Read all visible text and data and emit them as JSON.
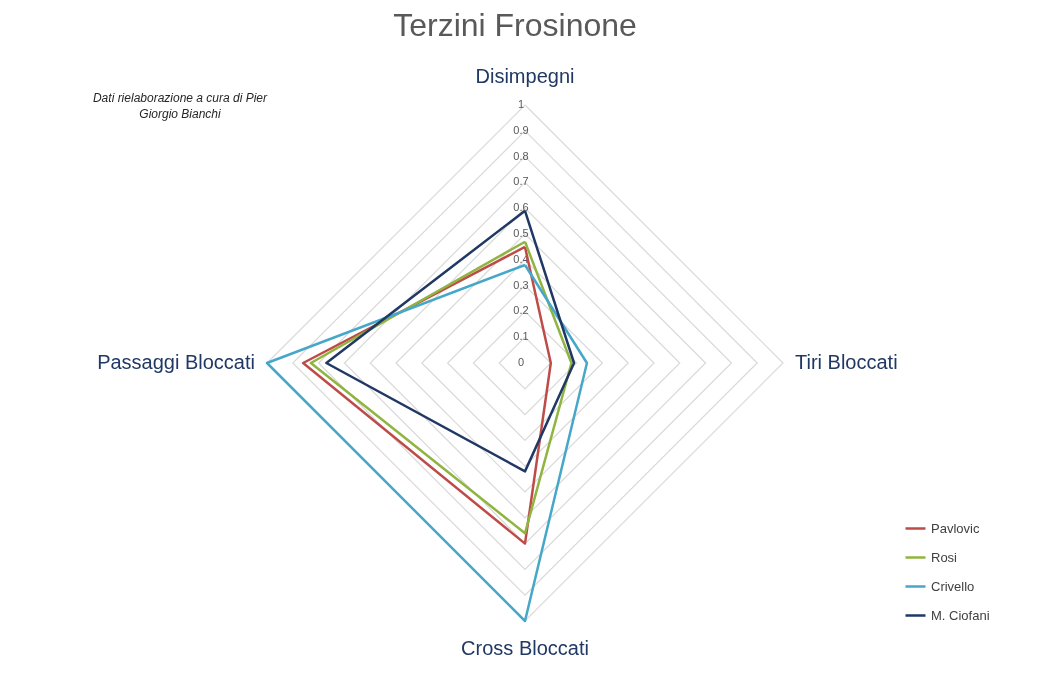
{
  "chart_data": {
    "type": "radar",
    "title": "Terzini Frosinone",
    "annotations": [
      "Dati rielaborazione a cura di Pier Giorgio Bianchi"
    ],
    "categories": [
      "Disimpegni",
      "Tiri Bloccati",
      "Cross Bloccati",
      "Passaggi Bloccati"
    ],
    "series": [
      {
        "name": "Pavlovic",
        "color": "#be4b48",
        "values": [
          0.45,
          0.1,
          0.7,
          0.86
        ]
      },
      {
        "name": "Rosi",
        "color": "#8fb43f",
        "values": [
          0.47,
          0.18,
          0.66,
          0.83
        ]
      },
      {
        "name": "Crivello",
        "color": "#46a7c8",
        "values": [
          0.38,
          0.24,
          1,
          1
        ]
      },
      {
        "name": "M. Ciofani",
        "color": "#203864",
        "values": [
          0.59,
          0.19,
          0.42,
          0.77
        ]
      }
    ],
    "ylim": [
      0,
      1
    ],
    "yticks": [
      0,
      0.1,
      0.2,
      0.3,
      0.4,
      0.5,
      0.6,
      0.7,
      0.8,
      0.9,
      1
    ],
    "grid": true,
    "legend": "bottom right",
    "marker": "none"
  }
}
